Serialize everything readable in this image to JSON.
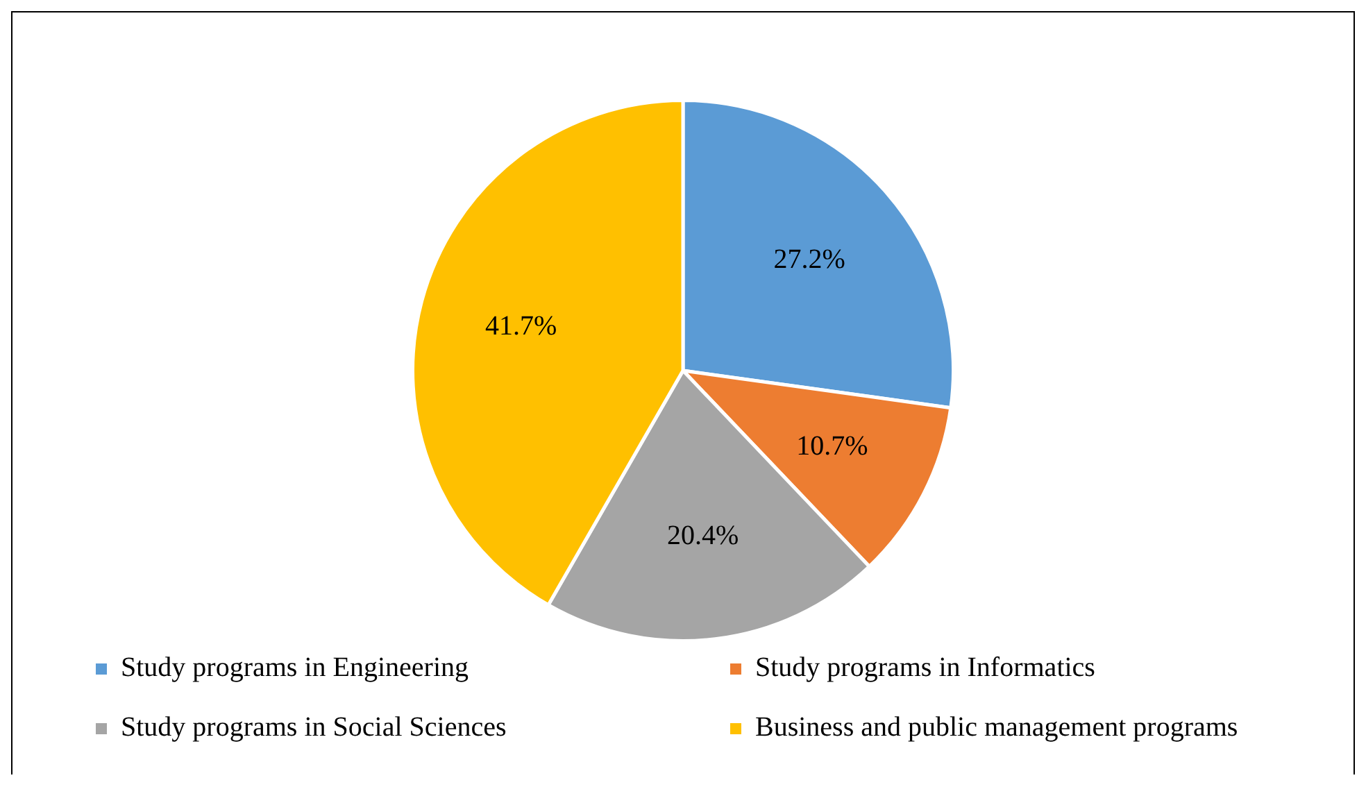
{
  "chart_data": {
    "type": "pie",
    "categories": [
      "Study programs in Engineering",
      "Study programs in Informatics",
      "Study programs in Social Sciences",
      "Business and public management programs"
    ],
    "values": [
      27.2,
      10.7,
      20.4,
      41.7
    ],
    "colors": [
      "#5b9bd5",
      "#ed7d31",
      "#a5a5a5",
      "#ffc000"
    ],
    "value_labels": [
      "27.2%",
      "10.7%",
      "20.4%",
      "41.7%"
    ],
    "legend": "bottom"
  }
}
